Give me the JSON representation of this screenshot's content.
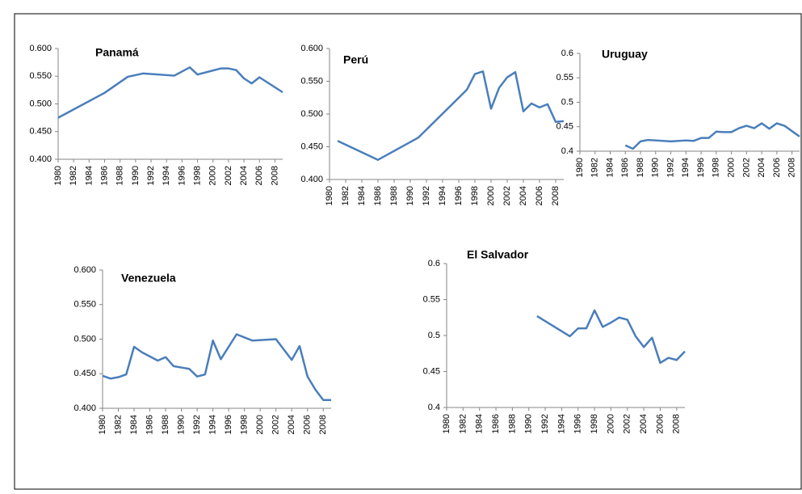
{
  "chart_data": [
    {
      "type": "line",
      "title": "Panamá",
      "x": [
        1980,
        1986,
        1989,
        1991,
        1995,
        1997,
        1998,
        2001,
        2002,
        2003,
        2004,
        2005,
        2006,
        2009
      ],
      "series": [
        {
          "color": "#4a7ebb",
          "values": [
            0.475,
            0.52,
            0.549,
            0.555,
            0.551,
            0.566,
            0.553,
            0.564,
            0.564,
            0.561,
            0.546,
            0.537,
            0.548,
            0.521
          ]
        }
      ],
      "xlim": [
        1980,
        2009
      ],
      "xticks": [
        1980,
        1982,
        1984,
        1986,
        1988,
        1990,
        1992,
        1994,
        1996,
        1998,
        2000,
        2002,
        2004,
        2006,
        2008
      ],
      "ylim": [
        0.4,
        0.6
      ],
      "yticks": [
        {
          "value": 0.4,
          "label": "0.400"
        },
        {
          "value": 0.45,
          "label": "0.450"
        },
        {
          "value": 0.5,
          "label": "0.500"
        },
        {
          "value": 0.55,
          "label": "0.550"
        },
        {
          "value": 0.6,
          "label": "0.600"
        }
      ]
    },
    {
      "type": "line",
      "title": "Perú",
      "x": [
        1981,
        1986,
        1991,
        1997,
        1998,
        1999,
        2000,
        2001,
        2002,
        2003,
        2004,
        2005,
        2006,
        2007,
        2008,
        2009
      ],
      "series": [
        {
          "color": "#4a7ebb",
          "values": [
            0.459,
            0.43,
            0.464,
            0.537,
            0.561,
            0.565,
            0.508,
            0.54,
            0.556,
            0.564,
            0.504,
            0.516,
            0.51,
            0.515,
            0.488,
            0.489
          ]
        }
      ],
      "xlim": [
        1980,
        2009
      ],
      "xticks": [
        1980,
        1982,
        1984,
        1986,
        1988,
        1990,
        1992,
        1994,
        1996,
        1998,
        2000,
        2002,
        2004,
        2006,
        2008
      ],
      "ylim": [
        0.4,
        0.6
      ],
      "yticks": [
        {
          "value": 0.4,
          "label": "0.400"
        },
        {
          "value": 0.45,
          "label": "0.450"
        },
        {
          "value": 0.5,
          "label": "0.500"
        },
        {
          "value": 0.55,
          "label": "0.550"
        },
        {
          "value": 0.6,
          "label": "0.600"
        }
      ]
    },
    {
      "type": "line",
      "title": "Uruguay",
      "x": [
        1986,
        1987,
        1988,
        1989,
        1990,
        1992,
        1994,
        1995,
        1996,
        1997,
        1998,
        1999,
        2000,
        2001,
        2002,
        2003,
        2004,
        2005,
        2006,
        2007,
        2008,
        2009
      ],
      "series": [
        {
          "color": "#4a7ebb",
          "values": [
            0.412,
            0.405,
            0.42,
            0.423,
            0.422,
            0.42,
            0.422,
            0.421,
            0.427,
            0.427,
            0.44,
            0.439,
            0.439,
            0.447,
            0.452,
            0.447,
            0.457,
            0.446,
            0.457,
            0.452,
            0.441,
            0.43
          ]
        }
      ],
      "xlim": [
        1980,
        2009
      ],
      "xticks": [
        1980,
        1982,
        1984,
        1986,
        1988,
        1990,
        1992,
        1994,
        1996,
        1998,
        2000,
        2002,
        2004,
        2006,
        2008
      ],
      "ylim": [
        0.4,
        0.6
      ],
      "yticks": [
        0.4,
        0.45,
        0.5,
        0.55,
        0.6
      ]
    },
    {
      "type": "line",
      "title": "Venezuela",
      "x": [
        1980,
        1981,
        1982,
        1983,
        1984,
        1985,
        1986,
        1987,
        1988,
        1989,
        1990,
        1991,
        1992,
        1993,
        1994,
        1995,
        1997,
        1999,
        2002,
        2004,
        2005,
        2006,
        2007,
        2008,
        2009
      ],
      "series": [
        {
          "color": "#4a7ebb",
          "values": [
            0.447,
            0.443,
            0.445,
            0.449,
            0.489,
            0.481,
            0.475,
            0.469,
            0.474,
            0.461,
            0.459,
            0.457,
            0.446,
            0.449,
            0.498,
            0.471,
            0.507,
            0.498,
            0.5,
            0.47,
            0.49,
            0.446,
            0.427,
            0.412,
            0.412
          ]
        }
      ],
      "xlim": [
        1980,
        2009
      ],
      "xticks": [
        1980,
        1982,
        1984,
        1986,
        1988,
        1990,
        1992,
        1994,
        1996,
        1998,
        2000,
        2002,
        2004,
        2006,
        2008
      ],
      "ylim": [
        0.4,
        0.6
      ],
      "yticks": [
        {
          "value": 0.4,
          "label": "0.400"
        },
        {
          "value": 0.45,
          "label": "0.450"
        },
        {
          "value": 0.5,
          "label": "0.500"
        },
        {
          "value": 0.55,
          "label": "0.550"
        },
        {
          "value": 0.6,
          "label": "0.600"
        }
      ]
    },
    {
      "type": "line",
      "title": "El Salvador",
      "x": [
        1991,
        1995,
        1996,
        1997,
        1998,
        1999,
        2000,
        2001,
        2002,
        2003,
        2004,
        2005,
        2006,
        2007,
        2008,
        2009
      ],
      "series": [
        {
          "color": "#4a7ebb",
          "values": [
            0.527,
            0.499,
            0.51,
            0.51,
            0.535,
            0.512,
            0.518,
            0.525,
            0.522,
            0.499,
            0.484,
            0.497,
            0.462,
            0.469,
            0.466,
            0.478
          ]
        }
      ],
      "xlim": [
        1980,
        2009
      ],
      "xticks": [
        1980,
        1982,
        1984,
        1986,
        1988,
        1990,
        1992,
        1994,
        1996,
        1998,
        2000,
        2002,
        2004,
        2006,
        2008
      ],
      "ylim": [
        0.4,
        0.6
      ],
      "yticks": [
        0.4,
        0.45,
        0.5,
        0.55,
        0.6
      ]
    }
  ]
}
